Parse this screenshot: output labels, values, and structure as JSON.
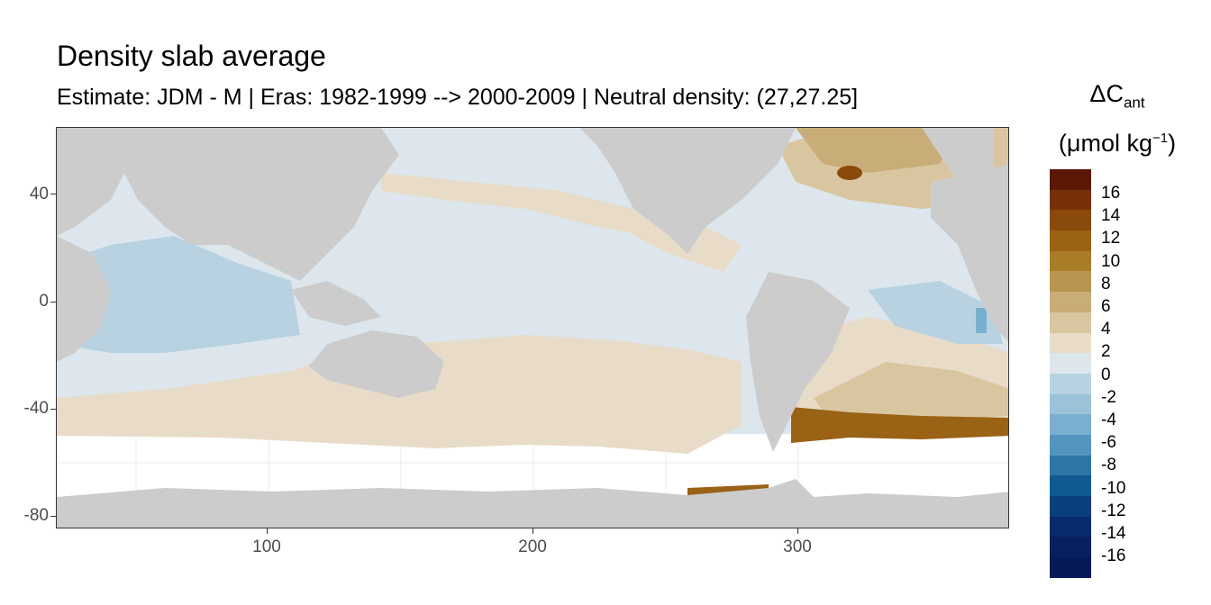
{
  "title": "Density slab average",
  "subtitle": "Estimate: JDM - M | Eras: 1982-1999 --> 2000-2009 | Neutral density: (27,27.25]",
  "legend": {
    "title_symbol": "ΔC",
    "title_sub": "ant",
    "unit_base": "(μmol kg",
    "unit_sup": "−1",
    "unit_end": ")",
    "colors": [
      "#5c1705",
      "#77300a",
      "#8a4a0b",
      "#9a6214",
      "#a97c28",
      "#b99450",
      "#c9ad78",
      "#d9c6a0",
      "#e8dcc8",
      "#dce6ec",
      "#b8d2e2",
      "#9cc2da",
      "#7aafcf",
      "#5495bf",
      "#2d76a6",
      "#0e5a91",
      "#083f7c",
      "#082c6d",
      "#08205f",
      "#071a58"
    ],
    "labels": [
      "16",
      "14",
      "12",
      "10",
      "8",
      "6",
      "4",
      "2",
      "0",
      "-2",
      "-4",
      "-6",
      "-8",
      "-10",
      "-12",
      "-14",
      "-16"
    ]
  },
  "axes": {
    "x_ticks": [
      "100",
      "200",
      "300"
    ],
    "y_ticks": [
      "40",
      "0",
      "-40",
      "-80"
    ]
  },
  "colors": {
    "land": "#cccccc",
    "ocean_nodata": "#ffffff",
    "grid": "#ebebeb",
    "neutral_blue": "#dce6ec",
    "light_tan": "#e8dcc8"
  }
}
